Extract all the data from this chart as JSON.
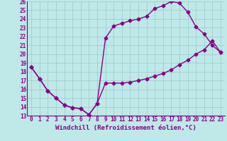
{
  "xlabel": "Windchill (Refroidissement éolien,°C)",
  "xlim": [
    -0.5,
    23.5
  ],
  "ylim": [
    13,
    26
  ],
  "xticks": [
    0,
    1,
    2,
    3,
    4,
    5,
    6,
    7,
    8,
    9,
    10,
    11,
    12,
    13,
    14,
    15,
    16,
    17,
    18,
    19,
    20,
    21,
    22,
    23
  ],
  "yticks": [
    13,
    14,
    15,
    16,
    17,
    18,
    19,
    20,
    21,
    22,
    23,
    24,
    25,
    26
  ],
  "background_color": "#bfe8e8",
  "grid_color": "#9fcfcf",
  "line_color": "#880088",
  "curve1_x": [
    0,
    1,
    2,
    3,
    4,
    5,
    6,
    7,
    8,
    9,
    10,
    11,
    12,
    13,
    14,
    15,
    16,
    17,
    18,
    19,
    20,
    21,
    22,
    23
  ],
  "curve1_y": [
    18.5,
    17.2,
    15.8,
    15.0,
    14.2,
    13.9,
    13.8,
    13.1,
    14.4,
    16.7,
    16.7,
    16.7,
    16.8,
    17.0,
    17.2,
    17.5,
    17.8,
    18.2,
    18.8,
    19.3,
    20.0,
    20.5,
    21.5,
    20.2
  ],
  "curve2_x": [
    0,
    1,
    2,
    3,
    4,
    5,
    6,
    7,
    8,
    9,
    10,
    11,
    12,
    13,
    14,
    15,
    16,
    17,
    18,
    19,
    20,
    21,
    22,
    23
  ],
  "curve2_y": [
    18.5,
    17.2,
    15.8,
    15.0,
    14.2,
    13.9,
    13.8,
    13.1,
    14.4,
    21.8,
    23.2,
    23.5,
    23.8,
    24.0,
    24.3,
    25.2,
    25.5,
    26.0,
    25.8,
    24.8,
    23.1,
    22.3,
    21.0,
    20.2
  ],
  "marker": "D",
  "marker_size": 2.5,
  "line_width": 1.0,
  "font_family": "monospace",
  "tick_fontsize": 5.5,
  "xlabel_fontsize": 6.5
}
